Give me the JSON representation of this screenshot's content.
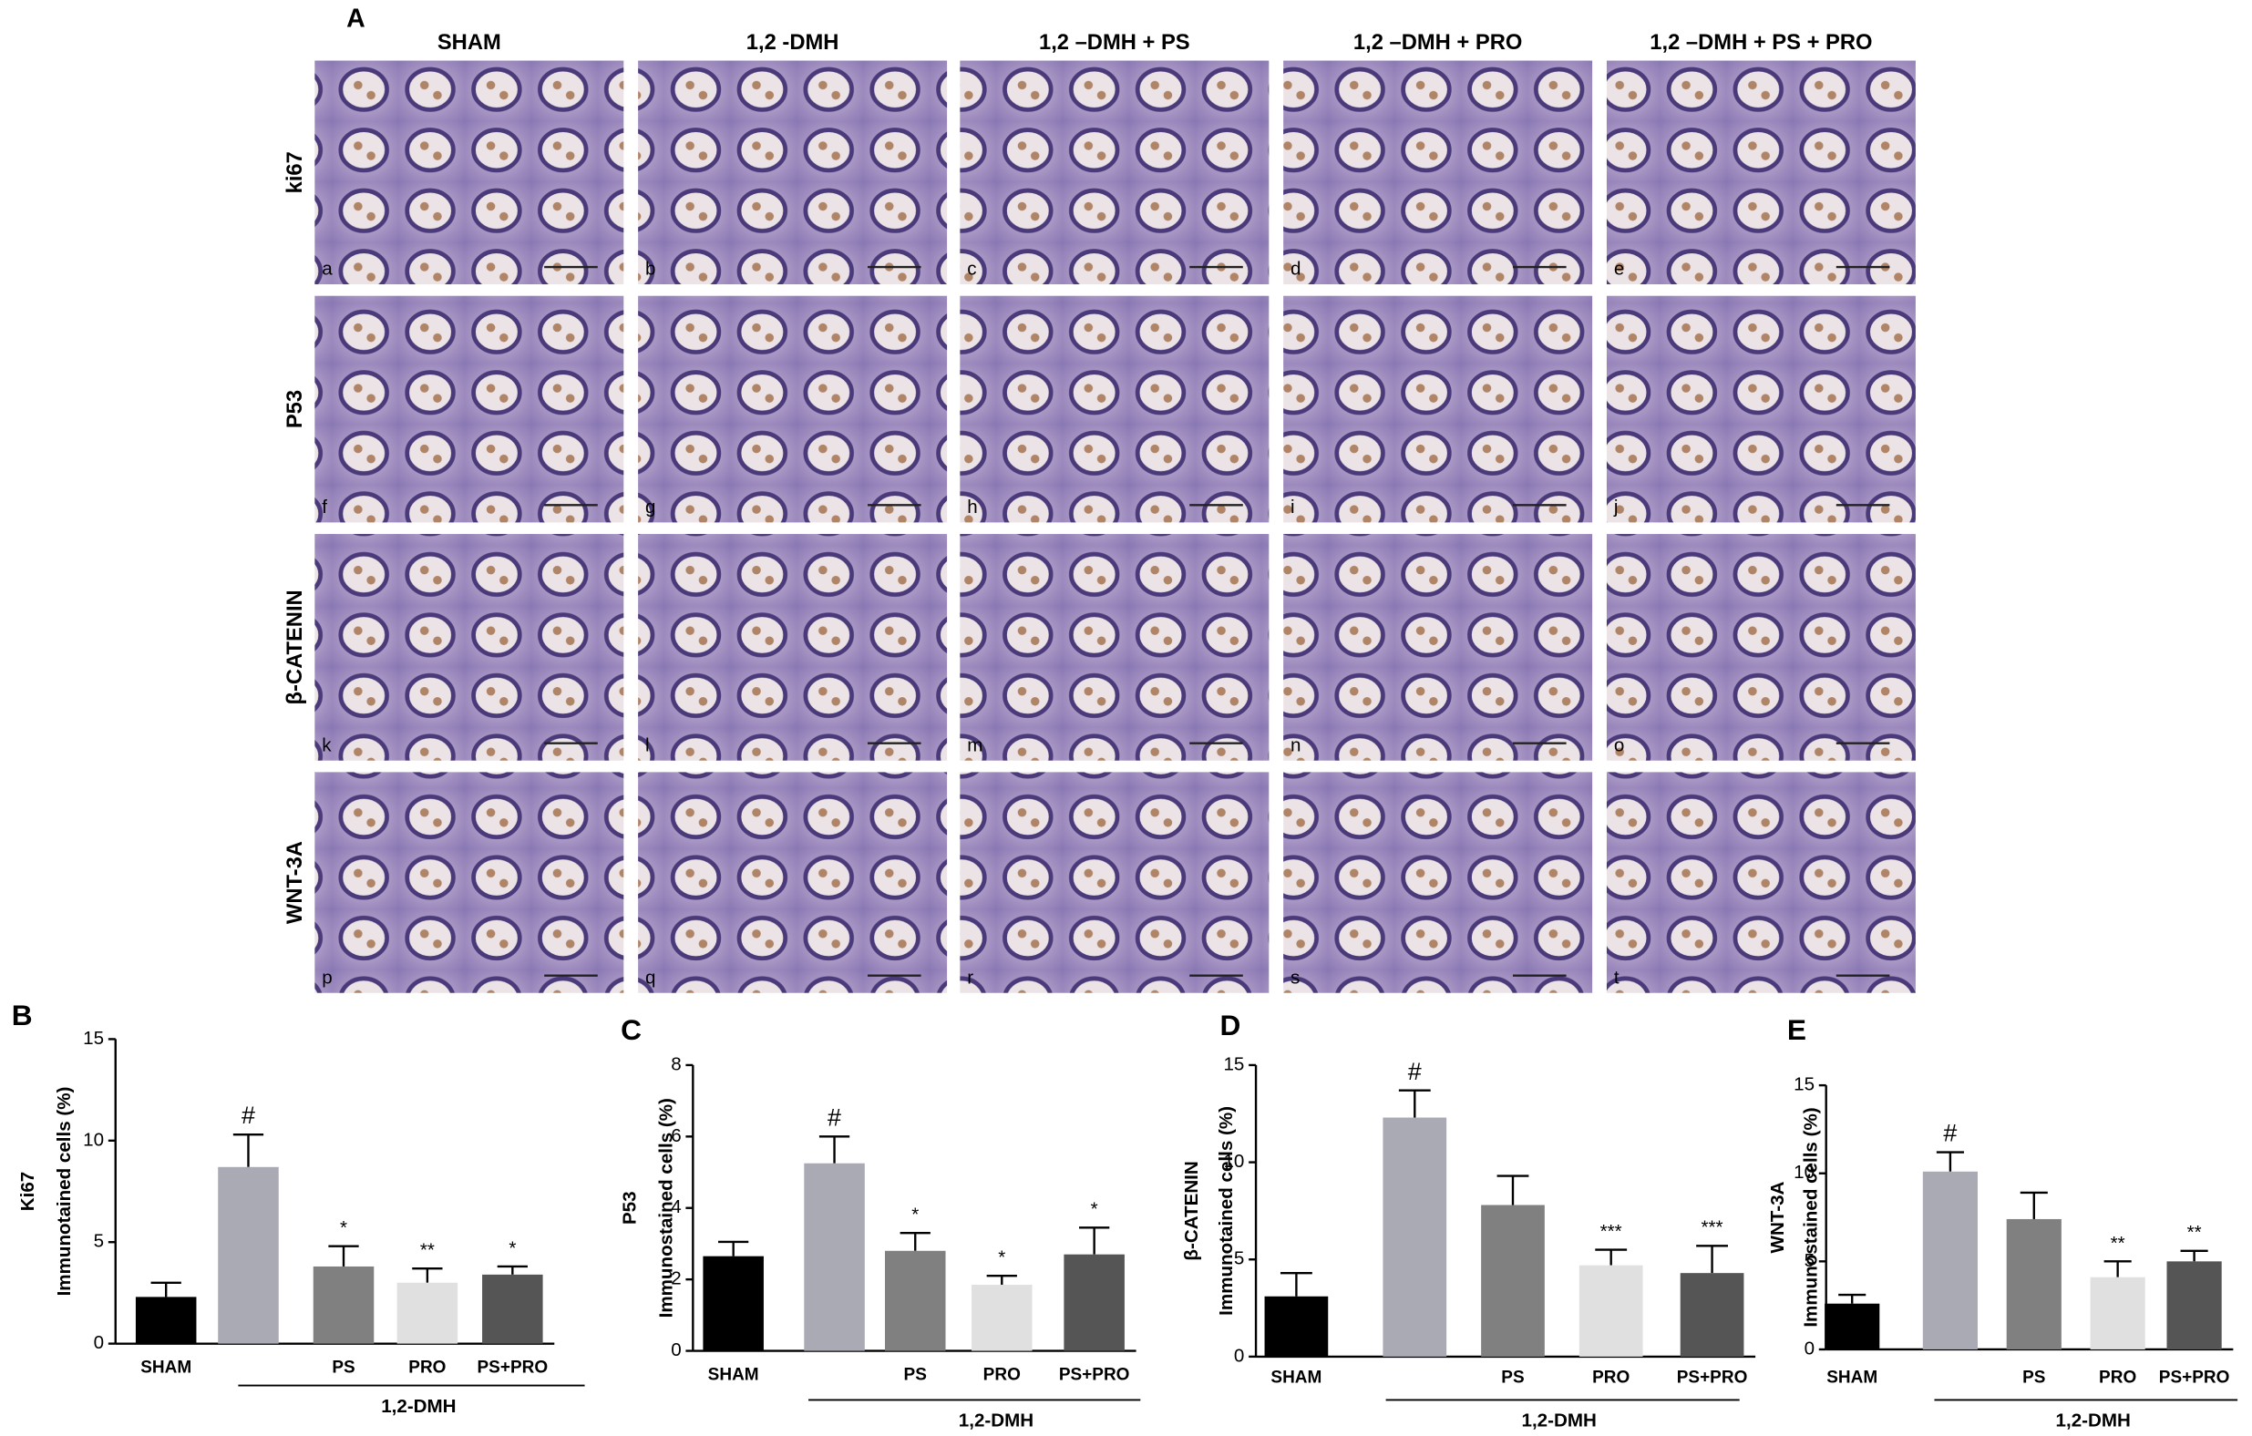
{
  "panel_a": {
    "label": "A",
    "columns": [
      "SHAM",
      "1,2 -DMH",
      "1,2 –DMH + PS",
      "1,2 –DMH + PRO",
      "1,2 –DMH + PS + PRO"
    ],
    "rows": [
      "ki67",
      "P53",
      "β-CATENIN",
      "WNT-3A"
    ],
    "panel_letters": [
      "a",
      "b",
      "c",
      "d",
      "e",
      "f",
      "g",
      "h",
      "i",
      "j",
      "k",
      "l",
      "m",
      "n",
      "o",
      "p",
      "q",
      "r",
      "s",
      "t"
    ]
  },
  "chart_data": [
    {
      "type": "bar",
      "panel_label": "B",
      "ylabel": [
        "Ki67",
        "Immunotained cells (%)"
      ],
      "categories": [
        "SHAM",
        null,
        "PS",
        "PRO",
        "PS+PRO"
      ],
      "group_label": "1,2-DMH",
      "values": [
        2.3,
        8.7,
        3.8,
        3.0,
        3.4
      ],
      "errors": [
        0.7,
        1.6,
        1.0,
        0.7,
        0.4
      ],
      "annotations": [
        null,
        "#",
        "*",
        "**",
        "*"
      ],
      "colors": [
        "#000000",
        "#a9aab4",
        "#808080",
        "#e0e0e0",
        "#555555"
      ],
      "ylim": [
        0,
        15
      ],
      "yticks": [
        0,
        5,
        10,
        15
      ]
    },
    {
      "type": "bar",
      "panel_label": "C",
      "ylabel": [
        "P53",
        "Immunostained cells (%)"
      ],
      "categories": [
        "SHAM",
        null,
        "PS",
        "PRO",
        "PS+PRO"
      ],
      "group_label": "1,2-DMH",
      "values": [
        2.65,
        5.25,
        2.8,
        1.85,
        2.7
      ],
      "errors": [
        0.4,
        0.75,
        0.5,
        0.25,
        0.75
      ],
      "annotations": [
        null,
        "#",
        "*",
        "*",
        "*"
      ],
      "colors": [
        "#000000",
        "#a9aab4",
        "#808080",
        "#e0e0e0",
        "#555555"
      ],
      "ylim": [
        0,
        8
      ],
      "yticks": [
        0,
        2,
        4,
        6,
        8
      ]
    },
    {
      "type": "bar",
      "panel_label": "D",
      "ylabel": [
        "β-CATENIN",
        "Immunotained cells (%)"
      ],
      "categories": [
        "SHAM",
        null,
        "PS",
        "PRO",
        "PS+PRO"
      ],
      "group_label": "1,2-DMH",
      "values": [
        3.1,
        12.3,
        7.8,
        4.7,
        4.3
      ],
      "errors": [
        1.2,
        1.4,
        1.5,
        0.8,
        1.4
      ],
      "annotations": [
        null,
        "#",
        null,
        "***",
        "***"
      ],
      "colors": [
        "#000000",
        "#a9aab4",
        "#808080",
        "#e0e0e0",
        "#555555"
      ],
      "ylim": [
        0,
        15
      ],
      "yticks": [
        0,
        5,
        10,
        15
      ]
    },
    {
      "type": "bar",
      "panel_label": "E",
      "ylabel": [
        "WNT-3A",
        "Immunostained cells (%)"
      ],
      "categories": [
        "SHAM",
        null,
        "PS",
        "PRO",
        "PS+PRO"
      ],
      "group_label": "1,2-DMH",
      "values": [
        2.6,
        10.1,
        7.4,
        4.1,
        5.0
      ],
      "errors": [
        0.5,
        1.1,
        1.5,
        0.9,
        0.6
      ],
      "annotations": [
        null,
        "#",
        null,
        "**",
        "**"
      ],
      "colors": [
        "#000000",
        "#a9aab4",
        "#808080",
        "#e0e0e0",
        "#555555"
      ],
      "ylim": [
        0,
        15
      ],
      "yticks": [
        0,
        5,
        10,
        15
      ]
    }
  ]
}
